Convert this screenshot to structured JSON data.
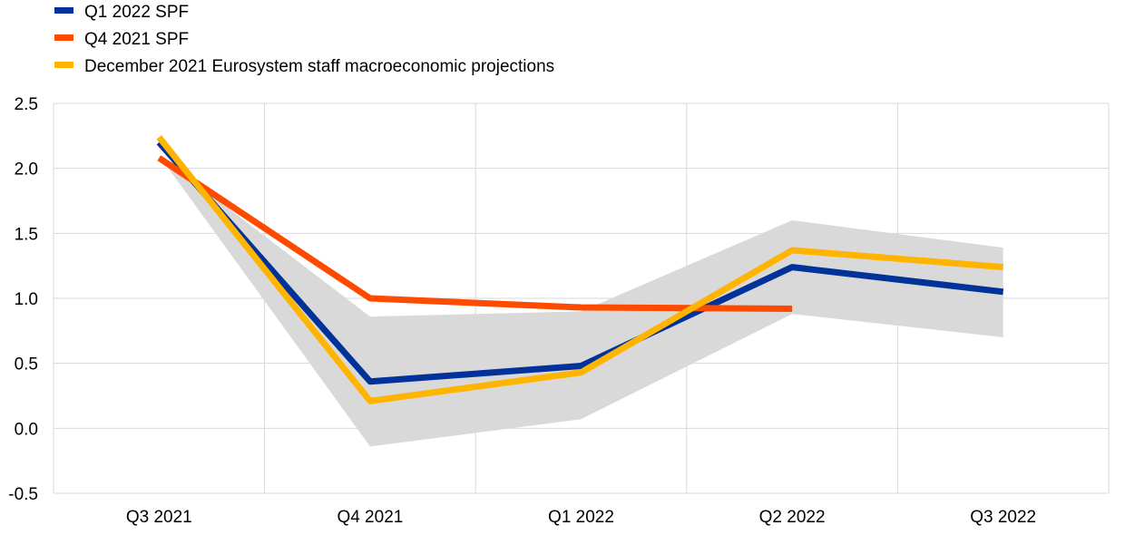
{
  "chart_data": {
    "type": "line",
    "title": "",
    "xlabel": "",
    "ylabel": "",
    "categories": [
      "Q3 2021",
      "Q4 2021",
      "Q1 2022",
      "Q2 2022",
      "Q3 2022"
    ],
    "ylim": [
      -0.5,
      2.5
    ],
    "yticks": [
      -0.5,
      0.0,
      0.5,
      1.0,
      1.5,
      2.0,
      2.5
    ],
    "ytick_labels": [
      "-0.5",
      "0.0",
      "0.5",
      "1.0",
      "1.5",
      "2.0",
      "2.5"
    ],
    "grid": true,
    "legend_position": "top-left",
    "band": {
      "color": "#d9d9d9",
      "lower": [
        2.1,
        -0.14,
        0.07,
        0.88,
        0.7
      ],
      "upper": [
        2.1,
        0.86,
        0.9,
        1.6,
        1.39
      ]
    },
    "series": [
      {
        "name": "Q1 2022 SPF",
        "color": "#003299",
        "values": [
          2.2,
          0.36,
          0.48,
          1.24,
          1.05
        ]
      },
      {
        "name": "Q4 2021 SPF",
        "color": "#ff4b00",
        "values": [
          2.08,
          1.0,
          0.93,
          0.92,
          null
        ]
      },
      {
        "name": "December 2021 Eurosystem staff macroeconomic projections",
        "color": "#ffb400",
        "values": [
          2.24,
          0.21,
          0.43,
          1.37,
          1.24
        ]
      }
    ]
  }
}
